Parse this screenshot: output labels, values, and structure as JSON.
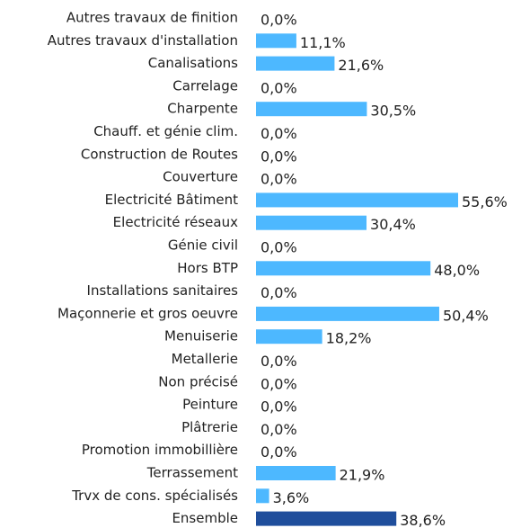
{
  "chart_data": {
    "type": "barh",
    "categories": [
      "Autres travaux de finition",
      "Autres travaux d'installation",
      "Canalisations",
      "Carrelage",
      "Charpente",
      "Chauff. et génie clim.",
      "Construction de Routes",
      "Couverture",
      "Electricité Bâtiment",
      "Electricité réseaux",
      "Génie civil",
      "Hors BTP",
      "Installations sanitaires",
      "Maçonnerie et gros oeuvre",
      "Menuiserie",
      "Metallerie",
      "Non précisé",
      "Peinture",
      "Plâtrerie",
      "Promotion immobillière",
      "Terrassement",
      "Trvx de cons. spécialisés",
      "Ensemble"
    ],
    "values": [
      0.0,
      11.1,
      21.6,
      0.0,
      30.5,
      0.0,
      0.0,
      0.0,
      55.6,
      30.4,
      0.0,
      48.0,
      0.0,
      50.4,
      18.2,
      0.0,
      0.0,
      0.0,
      0.0,
      0.0,
      21.9,
      3.6,
      38.6
    ],
    "value_labels": [
      "0,0%",
      "11,1%",
      "21,6%",
      "0,0%",
      "30,5%",
      "0,0%",
      "0,0%",
      "0,0%",
      "55,6%",
      "30,4%",
      "0,0%",
      "48,0%",
      "0,0%",
      "50,4%",
      "18,2%",
      "0,0%",
      "0,0%",
      "0,0%",
      "0,0%",
      "0,0%",
      "21,9%",
      "3,6%",
      "38,6%"
    ],
    "colors": [
      "#4db8ff",
      "#4db8ff",
      "#4db8ff",
      "#4db8ff",
      "#4db8ff",
      "#4db8ff",
      "#4db8ff",
      "#4db8ff",
      "#4db8ff",
      "#4db8ff",
      "#4db8ff",
      "#4db8ff",
      "#4db8ff",
      "#4db8ff",
      "#4db8ff",
      "#4db8ff",
      "#4db8ff",
      "#4db8ff",
      "#4db8ff",
      "#4db8ff",
      "#4db8ff",
      "#4db8ff",
      "#1f4e9c"
    ]
  }
}
